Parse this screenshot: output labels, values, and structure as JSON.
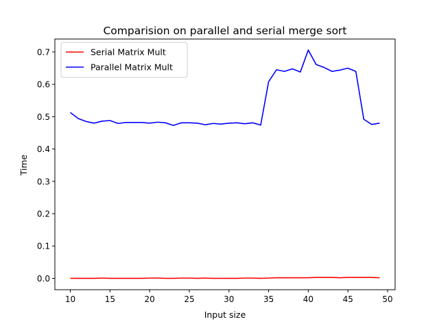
{
  "chart_data": {
    "type": "line",
    "title": "Comparision on parallel and serial merge sort",
    "xlabel": "Input size",
    "ylabel": "Time",
    "xlim": [
      8.05,
      50.95
    ],
    "ylim": [
      -0.035,
      0.74
    ],
    "x_ticks": [
      10,
      15,
      20,
      25,
      30,
      35,
      40,
      45,
      50
    ],
    "x_tick_labels": [
      "10",
      "15",
      "20",
      "25",
      "30",
      "35",
      "40",
      "45",
      "50"
    ],
    "y_ticks": [
      0.0,
      0.1,
      0.2,
      0.3,
      0.4,
      0.5,
      0.6,
      0.7
    ],
    "y_tick_labels": [
      "0.0",
      "0.1",
      "0.2",
      "0.3",
      "0.4",
      "0.5",
      "0.6",
      "0.7"
    ],
    "grid": false,
    "legend_position": "top-left",
    "x": [
      10,
      11,
      12,
      13,
      14,
      15,
      16,
      17,
      18,
      19,
      20,
      21,
      22,
      23,
      24,
      25,
      26,
      27,
      28,
      29,
      30,
      31,
      32,
      33,
      34,
      35,
      36,
      37,
      38,
      39,
      40,
      41,
      42,
      43,
      44,
      45,
      46,
      47,
      48,
      49
    ],
    "series": [
      {
        "name": "Serial Matrix Mult",
        "color": "#ff0000",
        "values": [
          0.0,
          0.0,
          0.0,
          0.0,
          0.001,
          0.0,
          0.0,
          0.0,
          0.0,
          0.0,
          0.001,
          0.001,
          0.0,
          0.0,
          0.001,
          0.001,
          0.0,
          0.001,
          0.0,
          0.0,
          0.0,
          0.0,
          0.001,
          0.001,
          0.0,
          0.001,
          0.002,
          0.002,
          0.002,
          0.002,
          0.002,
          0.003,
          0.003,
          0.003,
          0.002,
          0.003,
          0.003,
          0.003,
          0.003,
          0.002
        ]
      },
      {
        "name": "Parallel Matrix Mult",
        "color": "#0000ff",
        "values": [
          0.513,
          0.494,
          0.485,
          0.48,
          0.486,
          0.488,
          0.479,
          0.482,
          0.482,
          0.482,
          0.48,
          0.483,
          0.481,
          0.473,
          0.481,
          0.481,
          0.48,
          0.475,
          0.479,
          0.477,
          0.48,
          0.481,
          0.478,
          0.481,
          0.474,
          0.608,
          0.645,
          0.64,
          0.648,
          0.638,
          0.706,
          0.661,
          0.652,
          0.64,
          0.644,
          0.65,
          0.64,
          0.492,
          0.476,
          0.48
        ]
      }
    ]
  }
}
